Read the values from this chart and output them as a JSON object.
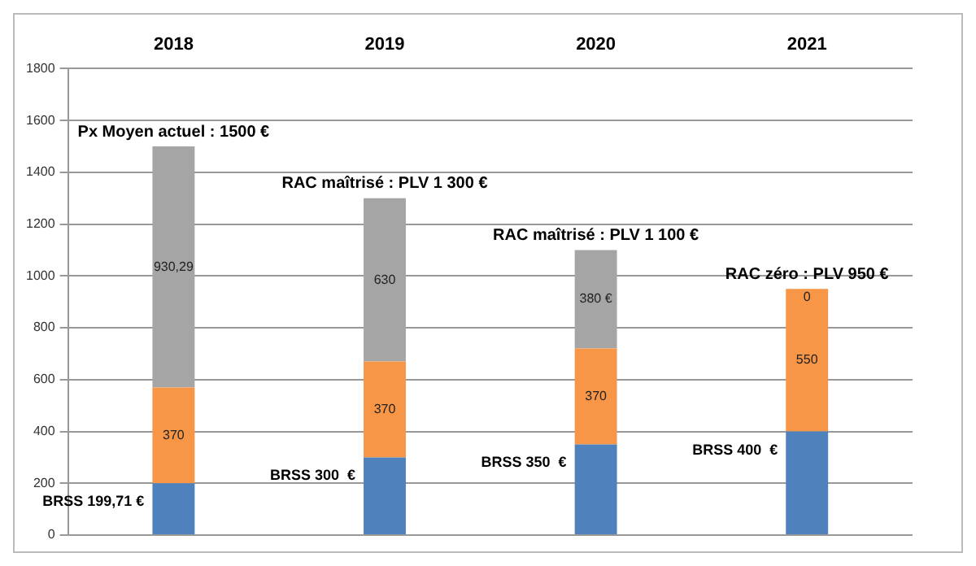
{
  "chart_data": {
    "type": "bar",
    "stacked": true,
    "categories": [
      "2018",
      "2019",
      "2020",
      "2021"
    ],
    "series": [
      {
        "color": "#4f81bd",
        "values": [
          199.71,
          300,
          350,
          400
        ]
      },
      {
        "color": "#f79646",
        "values": [
          370,
          370,
          370,
          550
        ],
        "value_labels": [
          "370",
          "370",
          "370",
          "550"
        ]
      },
      {
        "color": "#a5a5a5",
        "values": [
          930.29,
          630,
          380,
          0
        ],
        "value_labels": [
          "930,29",
          "630",
          "380 €",
          "0"
        ]
      }
    ],
    "ylim": [
      0,
      1800
    ],
    "yticks": [
      0,
      200,
      400,
      600,
      800,
      1000,
      1200,
      1400,
      1600,
      1800
    ],
    "grid": "y",
    "legend": false,
    "annotations": [
      {
        "text": "Px Moyen actuel : 1500 €",
        "x": "2018",
        "y": 1500
      },
      {
        "text": "RAC maîtrisé : PLV 1 300 €",
        "x": "2019",
        "y": 1300
      },
      {
        "text": "RAC maîtrisé : PLV 1 100 €",
        "x": "2020",
        "y": 1100
      },
      {
        "text": "RAC zéro : PLV 950 €",
        "x": "2021",
        "y": 950
      },
      {
        "text": "BRSS 199,71 €",
        "x": "2018",
        "y": 199.71
      },
      {
        "text": "BRSS 300  €",
        "x": "2019",
        "y": 300
      },
      {
        "text": "BRSS 350  €",
        "x": "2020",
        "y": 350
      },
      {
        "text": "BRSS 400  €",
        "x": "2021",
        "y": 400
      }
    ]
  }
}
